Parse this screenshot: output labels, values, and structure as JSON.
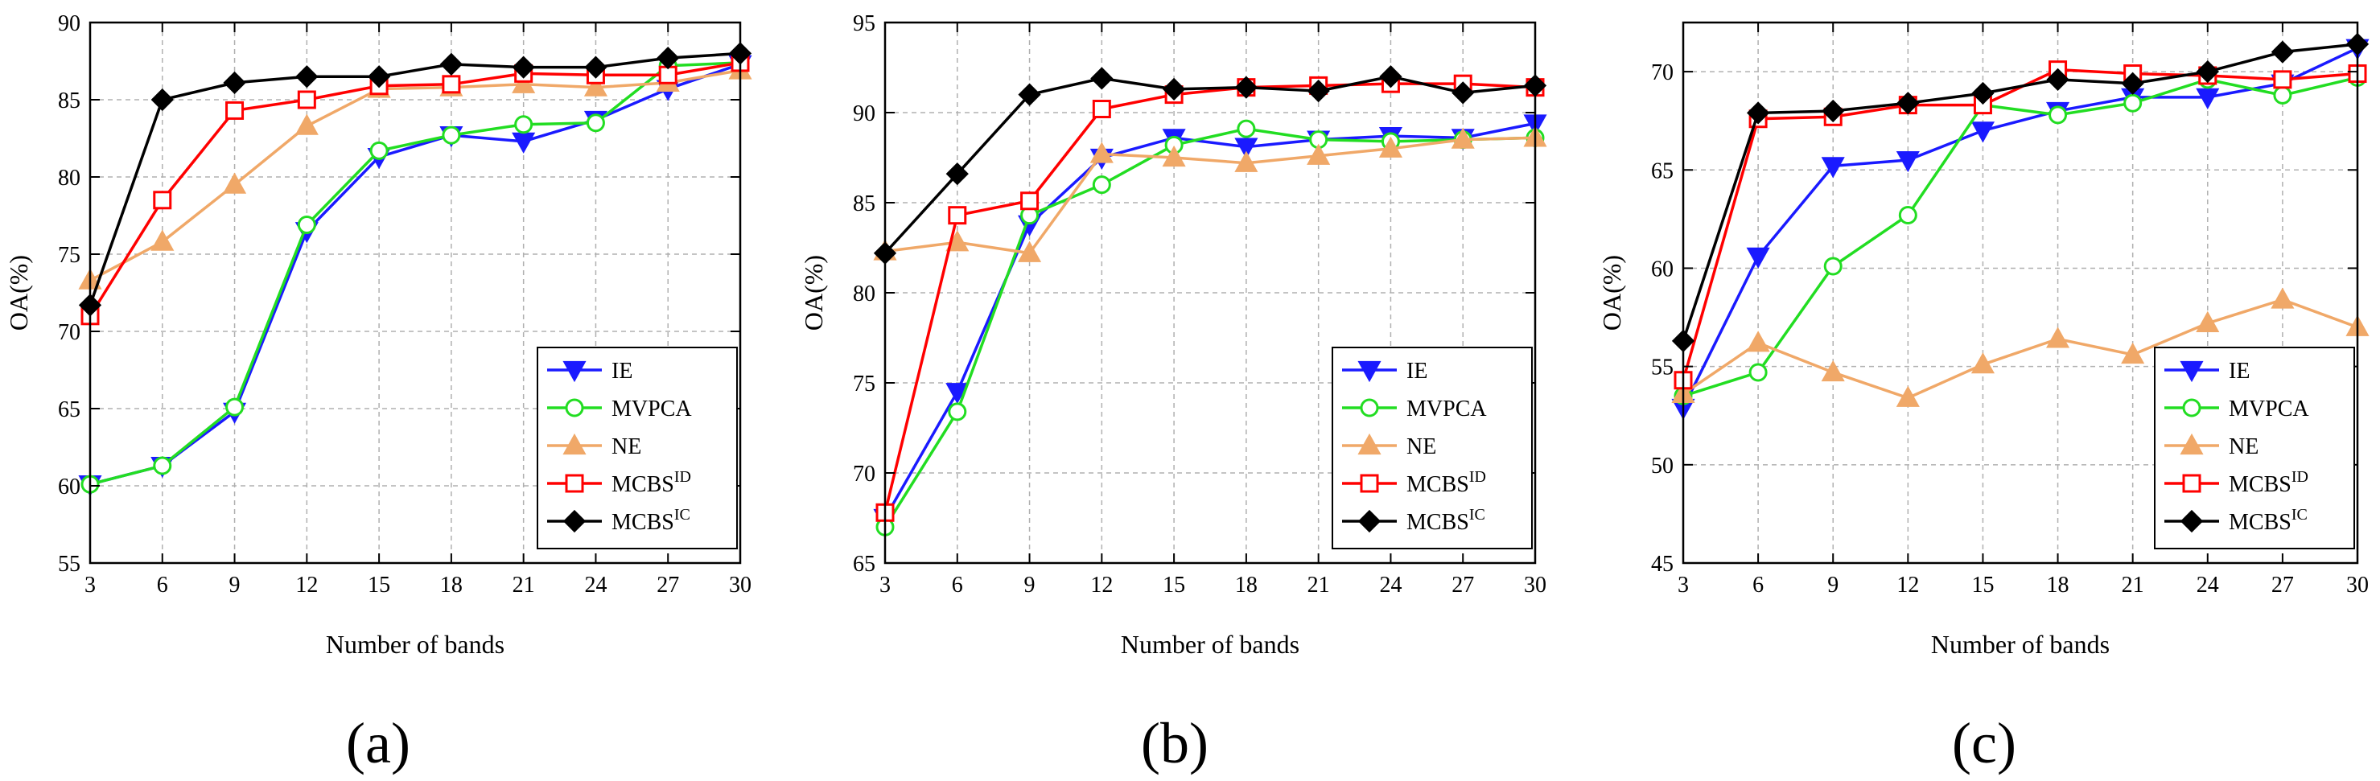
{
  "series_styles": {
    "IE": {
      "color": "#1a1aff",
      "marker": "triangle-down",
      "filled": true
    },
    "MVPCA": {
      "color": "#22dd22",
      "marker": "circle",
      "filled": false
    },
    "NE": {
      "color": "#f0a868",
      "marker": "triangle-up",
      "filled": true
    },
    "MCBS_ID": {
      "color": "#ff0000",
      "marker": "square",
      "filled": false
    },
    "MCBS_IC": {
      "color": "#000000",
      "marker": "diamond",
      "filled": true
    }
  },
  "chart_data": [
    {
      "type": "line",
      "panel_label": "(a)",
      "xlabel": "Number of bands",
      "ylabel": "OA(%)",
      "x": [
        3,
        6,
        9,
        12,
        15,
        18,
        21,
        24,
        27,
        30
      ],
      "xlim": [
        3,
        30
      ],
      "ylim": [
        55,
        90
      ],
      "yticks": [
        55,
        60,
        65,
        70,
        75,
        80,
        85,
        90
      ],
      "grid": true,
      "legend": "lower-right",
      "series": [
        {
          "key": "IE",
          "name": "IE",
          "sup": "",
          "values": [
            60.1,
            61.3,
            64.8,
            76.5,
            81.3,
            82.7,
            82.3,
            83.7,
            85.7,
            87.3
          ]
        },
        {
          "key": "MVPCA",
          "name": "MVPCA",
          "sup": "",
          "values": [
            60.1,
            61.3,
            65.1,
            76.9,
            81.7,
            82.7,
            83.4,
            83.5,
            87.2,
            87.4
          ]
        },
        {
          "key": "NE",
          "name": "NE",
          "sup": "",
          "values": [
            73.3,
            75.8,
            79.5,
            83.3,
            85.7,
            85.8,
            86.0,
            85.8,
            86.1,
            86.9
          ]
        },
        {
          "key": "MCBS_ID",
          "name": "MCBS",
          "sup": "ID",
          "values": [
            71.0,
            78.5,
            84.3,
            85.0,
            85.9,
            86.0,
            86.7,
            86.6,
            86.6,
            87.4
          ]
        },
        {
          "key": "MCBS_IC",
          "name": "MCBS",
          "sup": "IC",
          "values": [
            71.7,
            85.0,
            86.1,
            86.5,
            86.5,
            87.3,
            87.1,
            87.1,
            87.7,
            88.0
          ]
        }
      ]
    },
    {
      "type": "line",
      "panel_label": "(b)",
      "xlabel": "Number of bands",
      "ylabel": "OA(%)",
      "x": [
        3,
        6,
        9,
        12,
        15,
        18,
        21,
        24,
        27,
        30
      ],
      "xlim": [
        3,
        30
      ],
      "ylim": [
        65,
        95
      ],
      "yticks": [
        65,
        70,
        75,
        80,
        85,
        90,
        95
      ],
      "grid": true,
      "legend": "lower-right",
      "series": [
        {
          "key": "IE",
          "name": "IE",
          "sup": "",
          "values": [
            67.5,
            74.5,
            83.8,
            87.5,
            88.6,
            88.1,
            88.5,
            88.7,
            88.6,
            89.4
          ]
        },
        {
          "key": "MVPCA",
          "name": "MVPCA",
          "sup": "",
          "values": [
            67.0,
            73.4,
            84.3,
            86.0,
            88.2,
            89.1,
            88.5,
            88.4,
            88.5,
            88.6
          ]
        },
        {
          "key": "NE",
          "name": "NE",
          "sup": "",
          "values": [
            82.3,
            82.8,
            82.2,
            87.7,
            87.5,
            87.2,
            87.6,
            88.0,
            88.5,
            88.6
          ]
        },
        {
          "key": "MCBS_ID",
          "name": "MCBS",
          "sup": "ID",
          "values": [
            67.8,
            84.3,
            85.1,
            90.2,
            91.0,
            91.4,
            91.5,
            91.6,
            91.6,
            91.4
          ]
        },
        {
          "key": "MCBS_IC",
          "name": "MCBS",
          "sup": "IC",
          "values": [
            82.2,
            86.6,
            91.0,
            91.9,
            91.3,
            91.4,
            91.2,
            92.0,
            91.1,
            91.5
          ]
        }
      ]
    },
    {
      "type": "line",
      "panel_label": "(c)",
      "xlabel": "Number of bands",
      "ylabel": "OA(%)",
      "x": [
        3,
        6,
        9,
        12,
        15,
        18,
        21,
        24,
        27,
        30
      ],
      "xlim": [
        3,
        30
      ],
      "ylim": [
        45,
        72.5
      ],
      "yticks": [
        45,
        50,
        55,
        60,
        65,
        70
      ],
      "grid": true,
      "legend": "lower-right",
      "series": [
        {
          "key": "IE",
          "name": "IE",
          "sup": "",
          "values": [
            52.9,
            60.6,
            65.2,
            65.5,
            67.0,
            68.0,
            68.7,
            68.7,
            69.4,
            71.2
          ]
        },
        {
          "key": "MVPCA",
          "name": "MVPCA",
          "sup": "",
          "values": [
            53.5,
            54.7,
            60.1,
            62.7,
            68.3,
            67.8,
            68.4,
            69.6,
            68.8,
            69.7
          ]
        },
        {
          "key": "NE",
          "name": "NE",
          "sup": "",
          "values": [
            53.6,
            56.2,
            54.7,
            53.4,
            55.1,
            56.4,
            55.6,
            57.2,
            58.4,
            57.0
          ]
        },
        {
          "key": "MCBS_ID",
          "name": "MCBS",
          "sup": "ID",
          "values": [
            54.3,
            67.6,
            67.7,
            68.3,
            68.3,
            70.1,
            69.9,
            69.8,
            69.6,
            69.9
          ]
        },
        {
          "key": "MCBS_IC",
          "name": "MCBS",
          "sup": "IC",
          "values": [
            56.3,
            67.9,
            68.0,
            68.4,
            68.9,
            69.6,
            69.4,
            70.0,
            71.0,
            71.4
          ]
        }
      ]
    }
  ]
}
